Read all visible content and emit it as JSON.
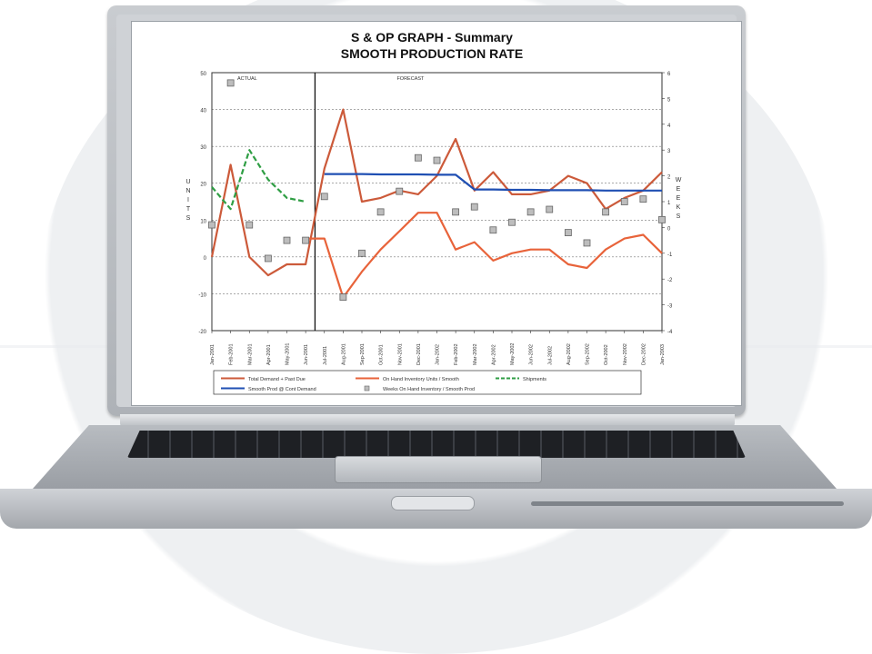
{
  "chart_data": {
    "type": "line",
    "title": "S & OP GRAPH -  Summary",
    "subtitle": "SMOOTH PRODUCTION RATE",
    "ylabel_left": "UNITS",
    "ylabel_right": "WEEKS",
    "ylim_left": [
      -20,
      50
    ],
    "ylim_right": [
      -4,
      6
    ],
    "left_ticks": [
      "50",
      "40",
      "30",
      "20",
      "10",
      "0",
      "-10",
      "-20"
    ],
    "right_ticks": [
      "6",
      "5",
      "4",
      "3",
      "2",
      "1",
      "0",
      "-1",
      "-2",
      "-3",
      "-4"
    ],
    "sections": [
      "ACTUAL",
      "FORECAST"
    ],
    "categories": [
      "Jan-2001",
      "Feb-2001",
      "Mar-2001",
      "Apr-2001",
      "May-2001",
      "Jun-2001",
      "Jul-2001",
      "Aug-2001",
      "Sep-2001",
      "Oct-2001",
      "Nov-2001",
      "Dec-2001",
      "Jan-2002",
      "Feb-2002",
      "Mar-2002",
      "Apr-2002",
      "May-2002",
      "Jun-2002",
      "Jul-2002",
      "Aug-2002",
      "Sep-2002",
      "Oct-2002",
      "Nov-2002",
      "Dec-2002",
      "Jan-2003"
    ],
    "series": [
      {
        "name": "Total Demand + Past Due",
        "axis": "left",
        "color": "#cc5a3a",
        "values": [
          0,
          25,
          0,
          -5,
          -2,
          -2,
          24,
          40,
          15,
          16,
          18,
          17,
          22,
          32,
          18,
          23,
          17,
          17,
          18,
          22,
          20,
          13,
          16,
          18,
          23
        ]
      },
      {
        "name": "On Hand Inventory Units / Smooth",
        "axis": "left",
        "color": "#e8633a",
        "values": [
          null,
          null,
          null,
          null,
          null,
          5,
          5,
          -11,
          -4,
          2,
          7,
          12,
          12,
          2,
          4,
          -1,
          1,
          2,
          2,
          -2,
          -3,
          2,
          5,
          6,
          1
        ]
      },
      {
        "name": "Shipments",
        "axis": "left",
        "color": "#2f9e44",
        "dash": true,
        "values": [
          19,
          13,
          29,
          21,
          16,
          15,
          null,
          null,
          null,
          null,
          null,
          null,
          null,
          null,
          null,
          null,
          null,
          null,
          null,
          null,
          null,
          null,
          null,
          null,
          null
        ]
      },
      {
        "name": "Smooth Prod @ Cont Demand",
        "axis": "left",
        "color": "#1f4fb3",
        "values": [
          null,
          null,
          null,
          null,
          null,
          null,
          22.5,
          22.5,
          22.5,
          22.4,
          22.4,
          22.4,
          22.3,
          22.3,
          18.3,
          18.3,
          18.2,
          18.2,
          18.1,
          18.1,
          18.1,
          18.0,
          18.0,
          18.0,
          18.0
        ]
      },
      {
        "name": "Weeks On Hand Inventory / Smooth Prod",
        "axis": "right",
        "color": "#888888",
        "marker": "square",
        "values": [
          0.1,
          5.6,
          0.1,
          -1.2,
          -0.5,
          -0.5,
          1.2,
          -2.7,
          -1.0,
          0.6,
          1.4,
          2.7,
          2.6,
          0.6,
          0.8,
          -0.1,
          0.2,
          0.6,
          0.7,
          -0.2,
          -0.6,
          0.6,
          1.0,
          1.1,
          0.3
        ]
      }
    ],
    "legend": [
      "Total Demand + Past Due",
      "On Hand Inventory Units / Smooth",
      "Shipments",
      "Smooth Prod @ Cont Demand",
      "Weeks On Hand Inventory / Smooth Prod"
    ],
    "grid": true,
    "legend_position": "bottom"
  }
}
